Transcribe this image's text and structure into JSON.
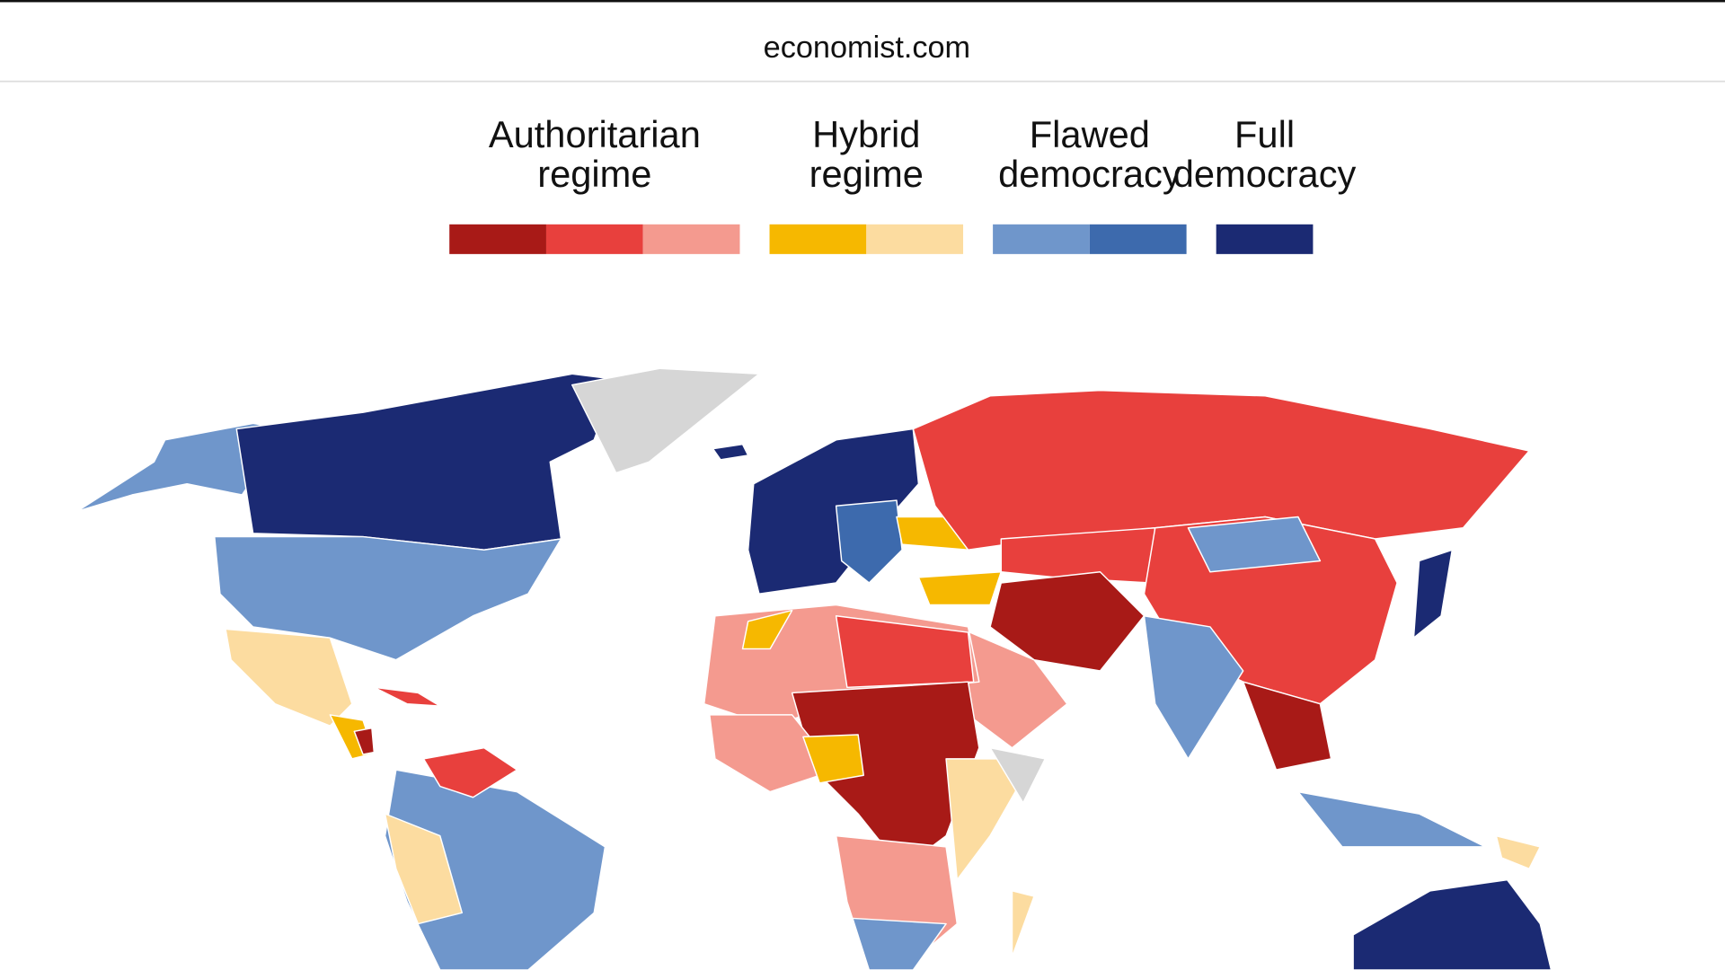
{
  "header": {
    "title": "economist.com"
  },
  "legend": {
    "items": [
      {
        "lines": [
          "Authoritarian",
          "regime"
        ],
        "colors": [
          "#a81a17",
          "#e8403d",
          "#f49a8f"
        ]
      },
      {
        "lines": [
          "Hybrid",
          "regime"
        ],
        "colors": [
          "#f6b800",
          "#fcdca0"
        ]
      },
      {
        "lines": [
          "Flawed",
          "democracy"
        ],
        "colors": [
          "#6f96cb",
          "#3d6aad"
        ]
      },
      {
        "lines": [
          "Full",
          "democracy"
        ],
        "colors": [
          "#1b2a73"
        ]
      }
    ]
  }
}
